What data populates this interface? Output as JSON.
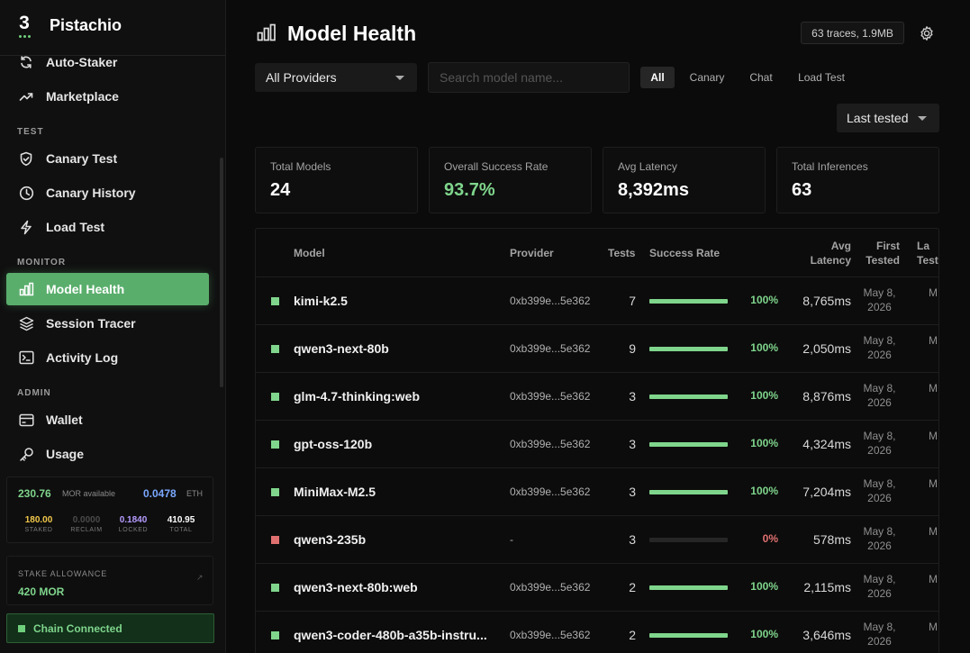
{
  "brand": {
    "logo_text": "3",
    "name": "Pistachio"
  },
  "sidebar": {
    "items_top": [
      {
        "label": "Auto-Staker",
        "icon": "refresh-icon"
      },
      {
        "label": "Marketplace",
        "icon": "trending-up-icon"
      }
    ],
    "section_test": "TEST",
    "items_test": [
      {
        "label": "Canary Test",
        "icon": "shield-check-icon"
      },
      {
        "label": "Canary History",
        "icon": "clock-icon"
      },
      {
        "label": "Load Test",
        "icon": "lightning-icon"
      }
    ],
    "section_monitor": "MONITOR",
    "items_monitor": [
      {
        "label": "Model Health",
        "icon": "bar-chart-icon",
        "active": true
      },
      {
        "label": "Session Tracer",
        "icon": "layers-icon"
      },
      {
        "label": "Activity Log",
        "icon": "terminal-icon"
      }
    ],
    "section_admin": "ADMIN",
    "items_admin": [
      {
        "label": "Wallet",
        "icon": "wallet-icon"
      },
      {
        "label": "Usage",
        "icon": "key-icon"
      }
    ]
  },
  "balances": {
    "mor_available": "230.76",
    "mor_available_label": "MOR available",
    "eth": "0.0478",
    "eth_label": "ETH",
    "staked": "180.00",
    "staked_label": "STAKED",
    "reclaim": "0.0000",
    "reclaim_label": "RECLAIM",
    "locked": "0.1840",
    "locked_label": "LOCKED",
    "total": "410.95",
    "total_label": "TOTAL"
  },
  "stake_allowance": {
    "label": "STAKE ALLOWANCE",
    "value": "420 MOR"
  },
  "chain_status": "Chain Connected",
  "header": {
    "title": "Model Health",
    "trace_badge": "63 traces, 1.9MB"
  },
  "filters": {
    "provider_selected": "All Providers",
    "search_placeholder": "Search model name...",
    "tabs": [
      "All",
      "Canary",
      "Chat",
      "Load Test"
    ],
    "active_tab": "All",
    "sort_selected": "Last tested"
  },
  "stats": [
    {
      "label": "Total Models",
      "value": "24"
    },
    {
      "label": "Overall Success Rate",
      "value": "93.7%"
    },
    {
      "label": "Avg Latency",
      "value": "8,392ms"
    },
    {
      "label": "Total Inferences",
      "value": "63"
    }
  ],
  "table": {
    "headers": {
      "model": "Model",
      "provider": "Provider",
      "tests": "Tests",
      "success": "Success Rate",
      "latency_1": "Avg",
      "latency_2": "Latency",
      "first_1": "First",
      "first_2": "Tested",
      "last_1": "La",
      "last_2": "Test"
    },
    "rows": [
      {
        "status": "ok",
        "model": "kimi-k2.5",
        "provider": "0xb399e...5e362",
        "tests": "7",
        "success": 1.0,
        "success_label": "100%",
        "latency": "8,765ms",
        "first_1": "May 8,",
        "first_2": "2026",
        "last_1": "M",
        "last_2": ""
      },
      {
        "status": "ok",
        "model": "qwen3-next-80b",
        "provider": "0xb399e...5e362",
        "tests": "9",
        "success": 1.0,
        "success_label": "100%",
        "latency": "2,050ms",
        "first_1": "May 8,",
        "first_2": "2026",
        "last_1": "M",
        "last_2": ""
      },
      {
        "status": "ok",
        "model": "glm-4.7-thinking:web",
        "provider": "0xb399e...5e362",
        "tests": "3",
        "success": 1.0,
        "success_label": "100%",
        "latency": "8,876ms",
        "first_1": "May 8,",
        "first_2": "2026",
        "last_1": "M",
        "last_2": ""
      },
      {
        "status": "ok",
        "model": "gpt-oss-120b",
        "provider": "0xb399e...5e362",
        "tests": "3",
        "success": 1.0,
        "success_label": "100%",
        "latency": "4,324ms",
        "first_1": "May 8,",
        "first_2": "2026",
        "last_1": "M",
        "last_2": ""
      },
      {
        "status": "ok",
        "model": "MiniMax-M2.5",
        "provider": "0xb399e...5e362",
        "tests": "3",
        "success": 1.0,
        "success_label": "100%",
        "latency": "7,204ms",
        "first_1": "May 8,",
        "first_2": "2026",
        "last_1": "M",
        "last_2": ""
      },
      {
        "status": "fail",
        "model": "qwen3-235b",
        "provider": "-",
        "tests": "3",
        "success": 0.0,
        "success_label": "0%",
        "latency": "578ms",
        "first_1": "May 8,",
        "first_2": "2026",
        "last_1": "M",
        "last_2": ""
      },
      {
        "status": "ok",
        "model": "qwen3-next-80b:web",
        "provider": "0xb399e...5e362",
        "tests": "2",
        "success": 1.0,
        "success_label": "100%",
        "latency": "2,115ms",
        "first_1": "May 8,",
        "first_2": "2026",
        "last_1": "M",
        "last_2": ""
      },
      {
        "status": "ok",
        "model": "qwen3-coder-480b-a35b-instru...",
        "provider": "0xb399e...5e362",
        "tests": "2",
        "success": 1.0,
        "success_label": "100%",
        "latency": "3,646ms",
        "first_1": "May 8,",
        "first_2": "2026",
        "last_1": "M",
        "last_2": ""
      }
    ]
  },
  "colors": {
    "accent": "#5aae6c",
    "success": "#7fd58c",
    "fail": "#e07070",
    "eth": "#7aa8ff",
    "staked": "#f2c94c",
    "locked": "#b69cff"
  }
}
